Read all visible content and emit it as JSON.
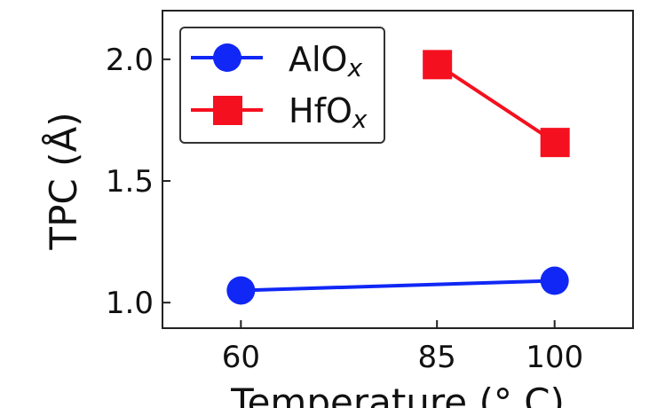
{
  "chart_data": {
    "type": "line",
    "title": "",
    "xlabel": "Temperature (° C)",
    "ylabel": "TPC (Å)",
    "xlim": [
      50,
      110
    ],
    "ylim": [
      0.895,
      2.2
    ],
    "xticks": [
      60,
      85,
      100
    ],
    "xtick_labels": [
      "60",
      "85",
      "100"
    ],
    "yticks": [
      1.0,
      1.5,
      2.0
    ],
    "ytick_labels": [
      "1.0",
      "1.5",
      "2.0"
    ],
    "grid": false,
    "legend_position": "top-left",
    "series": [
      {
        "name": "AlO",
        "name_sub": "x",
        "color": "#1027f5",
        "marker": "circle",
        "x": [
          60,
          100
        ],
        "y": [
          1.05,
          1.09
        ]
      },
      {
        "name": "HfO",
        "name_sub": "x",
        "color": "#f5101f",
        "marker": "square",
        "x": [
          85,
          100
        ],
        "y": [
          1.98,
          1.66
        ]
      }
    ]
  }
}
